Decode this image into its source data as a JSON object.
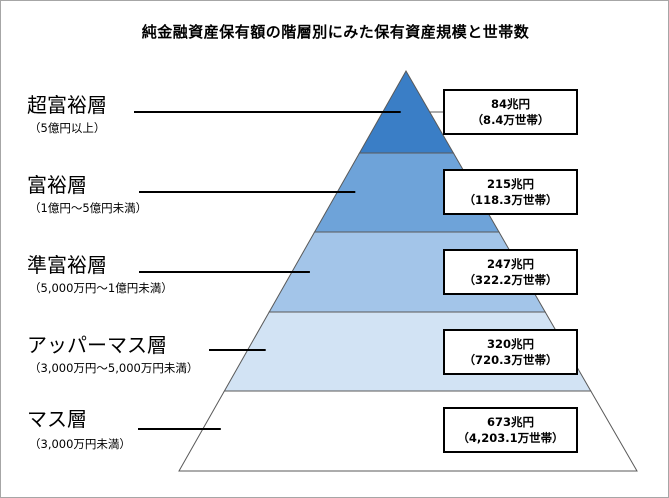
{
  "title": "純金融資産保有額の階層別にみた保有資産規模と世帯数",
  "tiers": [
    {
      "name": "超富裕層",
      "range": "（5億円以上）",
      "amount": "84兆円",
      "households": "（8.4万世帯）",
      "color": "#3a7ec6"
    },
    {
      "name": "富裕層",
      "range": "（1億円～5億円未満）",
      "amount": "215兆円",
      "households": "（118.3万世帯）",
      "color": "#6ea3d9"
    },
    {
      "name": "準富裕層",
      "range": "（5,000万円～1億円未満）",
      "amount": "247兆円",
      "households": "（322.2万世帯）",
      "color": "#a3c5e9"
    },
    {
      "name": "アッパーマス層",
      "range": "（3,000万円～5,000万円未満）",
      "amount": "320兆円",
      "households": "（720.3万世帯）",
      "color": "#d2e3f4"
    },
    {
      "name": "マス層",
      "range": "（3,000万円未満）",
      "amount": "673兆円",
      "households": "（4,203.1万世帯）",
      "color": "#ffffff"
    }
  ]
}
